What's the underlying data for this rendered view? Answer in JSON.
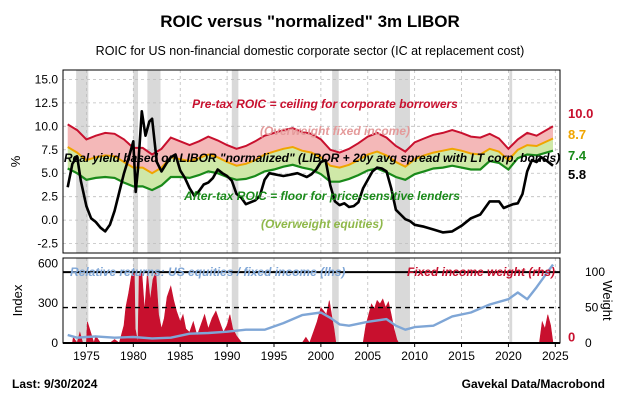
{
  "header": {
    "title": "ROIC versus \"normalized\" 3m LIBOR",
    "subtitle": "ROIC for US non-financial domestic corporate sector (IC at replacement cost)"
  },
  "footer": {
    "left": "Last: 9/30/2024",
    "right": "Gavekal Data/Macrobond"
  },
  "colors": {
    "pretax": "#c8102e",
    "aftertax": "#1a8a1a",
    "fill_upper": "#f4b8b8",
    "fill_lower": "#cfe8a8",
    "libor": "#000000",
    "middle": "#f0a500",
    "relative": "#7fa6d6",
    "weight": "#c8102e",
    "recession": "#d9d9d9"
  },
  "chart_data": [
    {
      "type": "line",
      "panel": "top",
      "ylabel": "%",
      "ylim": [
        -3.5,
        16
      ],
      "yticks": [
        -2.5,
        0.0,
        2.5,
        5.0,
        7.5,
        10.0,
        12.5,
        15.0
      ],
      "ytick_labels": [
        "-2.5",
        "0.0",
        "2.5",
        "5.0",
        "7.5",
        "10.0",
        "12.5",
        "15.0"
      ],
      "xlim": [
        1972.5,
        2025.5
      ],
      "recessions": [
        [
          1973.9,
          1975.2
        ],
        [
          1980.0,
          1980.5
        ],
        [
          1981.5,
          1982.9
        ],
        [
          1990.5,
          1991.2
        ],
        [
          2001.2,
          2001.9
        ],
        [
          2007.9,
          2009.5
        ],
        [
          2020.1,
          2020.4
        ]
      ],
      "series": [
        {
          "key": "pretax",
          "x": [
            1973,
            1974,
            1975,
            1976,
            1977,
            1978,
            1979,
            1980,
            1981,
            1982,
            1983,
            1984,
            1985,
            1986,
            1987,
            1988,
            1989,
            1990,
            1991,
            1992,
            1993,
            1994,
            1995,
            1996,
            1997,
            1998,
            1999,
            2000,
            2001,
            2002,
            2003,
            2004,
            2005,
            2006,
            2007,
            2008,
            2009,
            2010,
            2011,
            2012,
            2013,
            2014,
            2015,
            2016,
            2017,
            2018,
            2019,
            2020,
            2021,
            2022,
            2023,
            2024.75
          ],
          "values": [
            10.2,
            9.6,
            8.6,
            9.0,
            9.3,
            9.2,
            8.6,
            7.7,
            7.7,
            7.0,
            7.6,
            8.8,
            8.4,
            8.0,
            8.4,
            8.9,
            8.5,
            8.0,
            7.6,
            7.9,
            8.4,
            9.0,
            9.3,
            9.6,
            9.8,
            9.4,
            9.2,
            8.6,
            7.5,
            7.2,
            7.6,
            8.2,
            8.9,
            9.3,
            8.8,
            7.9,
            7.3,
            8.3,
            8.7,
            9.1,
            9.3,
            9.6,
            9.3,
            8.9,
            8.8,
            9.2,
            8.7,
            7.6,
            8.6,
            9.3,
            9.0,
            10.0
          ]
        },
        {
          "key": "middle",
          "x": [
            1973,
            1974,
            1975,
            1976,
            1977,
            1978,
            1979,
            1980,
            1981,
            1982,
            1983,
            1984,
            1985,
            1986,
            1987,
            1988,
            1989,
            1990,
            1991,
            1992,
            1993,
            1994,
            1995,
            1996,
            1997,
            1998,
            1999,
            2000,
            2001,
            2002,
            2003,
            2004,
            2005,
            2006,
            2007,
            2008,
            2009,
            2010,
            2011,
            2012,
            2013,
            2014,
            2015,
            2016,
            2017,
            2018,
            2019,
            2020,
            2021,
            2022,
            2023,
            2024.75
          ],
          "values": [
            7.8,
            7.2,
            6.4,
            6.7,
            6.9,
            6.8,
            6.2,
            5.6,
            5.6,
            5.0,
            5.6,
            6.7,
            6.5,
            6.3,
            6.6,
            7.0,
            6.7,
            6.2,
            5.8,
            6.0,
            6.4,
            7.0,
            7.3,
            7.6,
            7.8,
            7.4,
            7.2,
            6.7,
            5.8,
            5.6,
            5.9,
            6.4,
            7.0,
            7.3,
            6.9,
            6.2,
            5.7,
            6.5,
            6.9,
            7.2,
            7.4,
            7.6,
            7.4,
            7.1,
            7.0,
            7.6,
            7.3,
            6.4,
            7.5,
            8.0,
            7.9,
            8.7
          ]
        },
        {
          "key": "aftertax",
          "x": [
            1973,
            1974,
            1975,
            1976,
            1977,
            1978,
            1979,
            1980,
            1981,
            1982,
            1983,
            1984,
            1985,
            1986,
            1987,
            1988,
            1989,
            1990,
            1991,
            1992,
            1993,
            1994,
            1995,
            1996,
            1997,
            1998,
            1999,
            2000,
            2001,
            2002,
            2003,
            2004,
            2005,
            2006,
            2007,
            2008,
            2009,
            2010,
            2011,
            2012,
            2013,
            2014,
            2015,
            2016,
            2017,
            2018,
            2019,
            2020,
            2021,
            2022,
            2023,
            2024.75
          ],
          "values": [
            5.5,
            5.0,
            4.3,
            4.5,
            4.6,
            4.5,
            4.0,
            3.6,
            3.6,
            3.2,
            3.7,
            4.6,
            4.6,
            4.5,
            4.8,
            5.2,
            5.0,
            4.6,
            4.3,
            4.4,
            4.7,
            5.2,
            5.4,
            5.7,
            5.9,
            5.6,
            5.4,
            4.9,
            4.1,
            4.1,
            4.4,
            4.8,
            5.3,
            5.5,
            5.1,
            4.6,
            4.3,
            4.9,
            5.2,
            5.5,
            5.6,
            5.8,
            5.6,
            5.4,
            5.4,
            6.3,
            6.1,
            5.4,
            6.6,
            7.0,
            6.9,
            7.4
          ]
        },
        {
          "key": "libor",
          "x": [
            1973,
            1973.5,
            1974,
            1974.4,
            1975,
            1975.5,
            1976,
            1976.5,
            1977,
            1977.5,
            1978,
            1978.5,
            1979,
            1979.5,
            1980,
            1980.25,
            1980.5,
            1980.9,
            1981.3,
            1981.7,
            1982,
            1982.5,
            1983,
            1983.5,
            1984,
            1984.5,
            1985,
            1985.5,
            1986,
            1986.5,
            1987,
            1987.5,
            1988,
            1988.5,
            1989,
            1989.5,
            1990,
            1990.5,
            1991,
            1991.5,
            1992,
            1992.5,
            1993,
            1993.5,
            1994,
            1994.5,
            1995,
            1995.5,
            1996,
            1996.5,
            1997,
            1997.5,
            1998,
            1998.5,
            1999,
            1999.5,
            2000,
            2000.5,
            2001,
            2001.5,
            2002,
            2002.5,
            2003,
            2003.5,
            2004,
            2004.5,
            2005,
            2005.5,
            2006,
            2006.5,
            2007,
            2007.5,
            2008,
            2008.5,
            2009,
            2009.5,
            2010,
            2011,
            2012,
            2013,
            2014,
            2015,
            2016,
            2017,
            2018,
            2019,
            2019.5,
            2020,
            2020.5,
            2021,
            2021.5,
            2022,
            2022.5,
            2023,
            2023.5,
            2024,
            2024.75
          ],
          "values": [
            3.5,
            6.0,
            6.8,
            4.2,
            1.5,
            0.2,
            -0.2,
            -0.8,
            -1.2,
            -0.5,
            1.0,
            3.0,
            5.0,
            6.6,
            8.4,
            3.0,
            5.5,
            11.6,
            9.0,
            10.5,
            10.8,
            6.2,
            5.2,
            6.0,
            6.7,
            7.0,
            5.3,
            4.5,
            3.4,
            2.6,
            3.1,
            3.8,
            4.0,
            4.5,
            5.4,
            5.0,
            4.7,
            4.2,
            2.8,
            2.4,
            1.7,
            1.9,
            2.1,
            2.6,
            4.3,
            5.0,
            4.9,
            4.8,
            4.7,
            4.8,
            4.9,
            5.0,
            4.8,
            4.6,
            4.9,
            5.4,
            6.2,
            6.4,
            3.7,
            2.0,
            1.6,
            1.8,
            1.4,
            1.5,
            1.9,
            3.4,
            4.3,
            5.2,
            5.6,
            5.5,
            5.2,
            3.4,
            1.1,
            0.6,
            0.1,
            -0.1,
            -0.5,
            -0.7,
            -1.0,
            -1.3,
            -1.2,
            -0.6,
            0.2,
            0.6,
            2.0,
            2.0,
            1.3,
            1.5,
            1.7,
            1.8,
            2.8,
            5.2,
            6.4,
            6.2,
            6.7,
            6.4,
            5.8
          ]
        }
      ],
      "end_labels": {
        "pretax": "10.0",
        "middle": "8.7",
        "aftertax": "7.4",
        "libor": "5.8"
      },
      "annotations": [
        "Pre-tax ROIC = ceiling for corporate borrowers",
        "(Overweight fixed income)",
        "Real yield based on LIBOR \"normalized\" (LIBOR + 20y avg spread with LT corp. bonds)",
        "After-tax ROIC = floor for price-sensitive lenders",
        "(Overweight equities)"
      ]
    },
    {
      "type": "line",
      "panel": "bottom",
      "ylabel_left": "Index",
      "ylabel_right": "Weight",
      "ylim_left": [
        0,
        640
      ],
      "yticks_left": [
        0,
        300,
        600
      ],
      "ylim_right": [
        0,
        120
      ],
      "yticks_right": [
        0,
        50,
        100
      ],
      "xlim": [
        1972.5,
        2025.5
      ],
      "xticks": [
        1975,
        1980,
        1985,
        1990,
        1995,
        2000,
        2005,
        2010,
        2015,
        2020,
        2025
      ],
      "xtick_labels": [
        "1975",
        "1980",
        "1985",
        "1990",
        "1995",
        "2000",
        "2005",
        "2010",
        "2015",
        "2020",
        "2025"
      ],
      "right_end_label": "0",
      "series": [
        {
          "key": "relative",
          "name": "Relative returns: US equities / fixed income (lhs)",
          "x": [
            1973,
            1974,
            1975,
            1976,
            1978,
            1980,
            1982,
            1984,
            1986,
            1988,
            1990,
            1992,
            1994,
            1996,
            1998,
            2000,
            2001,
            2002,
            2003,
            2005,
            2007,
            2008,
            2009,
            2010,
            2012,
            2014,
            2016,
            2018,
            2020,
            2021,
            2022,
            2023,
            2024.75
          ],
          "values": [
            60,
            40,
            45,
            50,
            40,
            45,
            35,
            40,
            70,
            75,
            85,
            100,
            100,
            150,
            210,
            230,
            190,
            140,
            130,
            160,
            180,
            130,
            100,
            120,
            130,
            200,
            230,
            290,
            330,
            380,
            330,
            420,
            590
          ]
        },
        {
          "key": "weight",
          "name": "Fixed income weight (rhs)",
          "x": [
            1972.5,
            1973.5,
            1973.6,
            1974.0,
            1974.3,
            1974.6,
            1975.0,
            1975.1,
            1975.8,
            1976.0,
            1976.5,
            1977.0,
            1977.5,
            1978.0,
            1978.5,
            1979.0,
            1979.2,
            1979.5,
            1979.8,
            1980.1,
            1980.2,
            1980.5,
            1980.6,
            1980.9,
            1981.2,
            1981.5,
            1981.8,
            1982.1,
            1982.4,
            1982.7,
            1983.0,
            1983.3,
            1983.6,
            1984.0,
            1984.3,
            1984.6,
            1985.0,
            1985.3,
            1985.6,
            1986.0,
            1986.4,
            1986.8,
            1987.2,
            1987.6,
            1988.0,
            1988.4,
            1988.8,
            1989.2,
            1989.6,
            1990.0,
            1990.3,
            1990.6,
            1991.0,
            1991.3,
            1991.6,
            1998.0,
            1998.4,
            1998.8,
            1999.2,
            1999.6,
            2000.0,
            2000.3,
            2000.6,
            2000.9,
            2001.2,
            2001.4,
            2001.6,
            2004.5,
            2004.8,
            2005.1,
            2005.4,
            2005.7,
            2006.0,
            2006.3,
            2006.6,
            2006.9,
            2007.2,
            2007.5,
            2007.8,
            2008.1,
            2008.3,
            2023.3,
            2023.6,
            2023.9,
            2024.2,
            2024.5,
            2024.75
          ],
          "values": [
            0,
            0,
            8,
            0,
            15,
            0,
            0,
            30,
            0,
            10,
            0,
            0,
            0,
            5,
            0,
            25,
            50,
            70,
            95,
            100,
            20,
            0,
            95,
            100,
            45,
            100,
            60,
            90,
            100,
            40,
            20,
            35,
            65,
            80,
            60,
            45,
            30,
            40,
            20,
            15,
            30,
            10,
            25,
            40,
            20,
            35,
            45,
            30,
            15,
            25,
            40,
            20,
            10,
            5,
            0,
            0,
            8,
            0,
            15,
            30,
            50,
            45,
            40,
            60,
            35,
            20,
            0,
            0,
            25,
            40,
            55,
            48,
            60,
            55,
            62,
            50,
            58,
            40,
            20,
            5,
            0,
            0,
            30,
            20,
            40,
            25,
            0
          ]
        }
      ],
      "hlines_right": [
        {
          "value": 100,
          "style": "solid"
        },
        {
          "value": 50,
          "style": "dashed"
        },
        {
          "value": 0,
          "style": "solid"
        }
      ]
    }
  ]
}
